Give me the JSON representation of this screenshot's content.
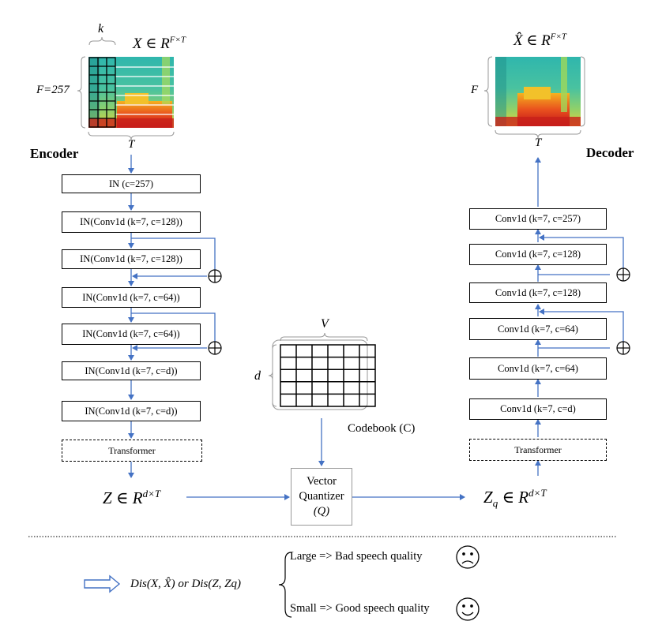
{
  "encoder": {
    "title": "Encoder",
    "input_label": "X ∈ R",
    "input_sup": "F×T",
    "k_label": "k",
    "f_label": "F=257",
    "t_label": "T",
    "blocks": [
      "IN (c=257)",
      "IN(Conv1d (k=7, c=128))",
      "IN(Conv1d (k=7, c=128))",
      "IN(Conv1d (k=7, c=64))",
      "IN(Conv1d (k=7, c=64))",
      "IN(Conv1d (k=7, c=d))",
      "IN(Conv1d (k=7, c=d))"
    ],
    "transformer": "Transformer",
    "output_label": "Z ∈ R",
    "output_sup": "d×T"
  },
  "decoder": {
    "title": "Decoder",
    "output_label": "X̂ ∈ R",
    "output_sup": "F×T",
    "f_label": "F",
    "t_label": "T",
    "blocks": [
      "Conv1d (k=7, c=257)",
      "Conv1d (k=7, c=128)",
      "Conv1d (k=7, c=128)",
      "Conv1d (k=7, c=64)",
      "Conv1d (k=7, c=64)",
      "Conv1d (k=7, c=d)"
    ],
    "transformer": "Transformer",
    "input_label": "Z",
    "input_sub": "q",
    "input_rest": " ∈ R",
    "input_sup": "d×T"
  },
  "codebook": {
    "v_label": "V",
    "d_label": "d",
    "caption": "Codebook (C)"
  },
  "quantizer": {
    "line1": "Vector",
    "line2": "Quantizer",
    "line3": "(Q)"
  },
  "legend": {
    "distance_text": "Dis(X, X̂)  or  Dis(Z, Zq)",
    "large_text": "Large => Bad speech quality",
    "small_text": "Small => Good speech quality",
    "sad_icon": "sad-face-icon",
    "happy_icon": "happy-face-icon"
  },
  "colors": {
    "arrow": "#4472c4",
    "line": "#000000"
  }
}
